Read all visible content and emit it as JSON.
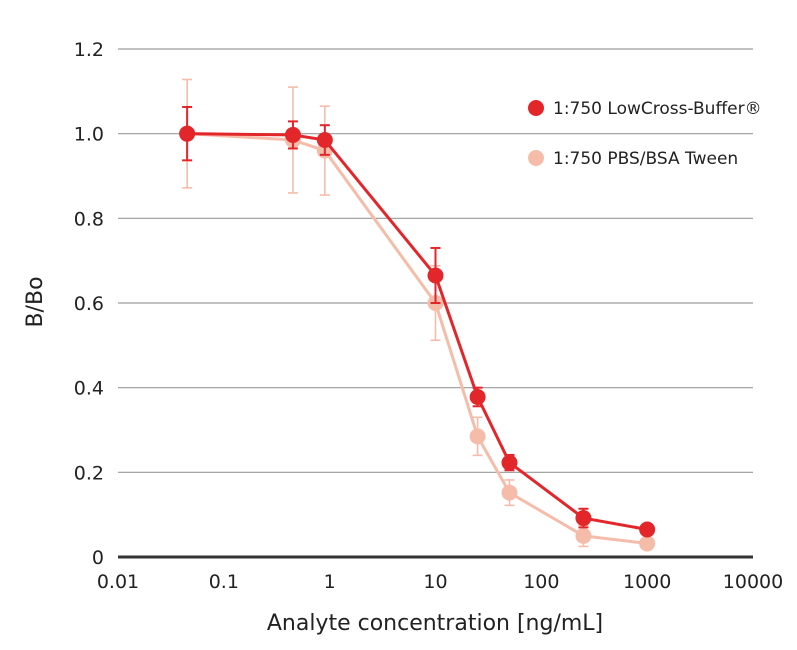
{
  "chart_data": {
    "type": "line",
    "xlabel": "Analyte concentration [ng/mL]",
    "ylabel": "B/Bo",
    "xscale": "log",
    "xlim": [
      0.01,
      10000
    ],
    "ylim": [
      0,
      1.2
    ],
    "x_ticks": [
      "0.01",
      "0.1",
      "1",
      "10",
      "100",
      "1000",
      "10000"
    ],
    "y_ticks": [
      "0",
      "0.2",
      "0.4",
      "0.6",
      "0.8",
      "1.0",
      "1.2"
    ],
    "grid": "horizontal",
    "legend_position": "top-right",
    "series": [
      {
        "name": "1:750 LowCross-Buffer®",
        "color": "#e3262a",
        "x": [
          0.045,
          0.45,
          0.9,
          10,
          25,
          50,
          250,
          1000
        ],
        "y": [
          1.0,
          0.997,
          0.985,
          0.665,
          0.378,
          0.223,
          0.092,
          0.065
        ],
        "err": [
          0.063,
          0.032,
          0.035,
          0.065,
          0.022,
          0.018,
          0.022,
          0.012
        ]
      },
      {
        "name": "1:750 PBS/BSA Tween",
        "color": "#f6bcaa",
        "x": [
          0.045,
          0.45,
          0.9,
          10,
          25,
          50,
          250,
          1000
        ],
        "y": [
          1.0,
          0.985,
          0.96,
          0.6,
          0.285,
          0.152,
          0.05,
          0.032
        ],
        "err": [
          0.128,
          0.125,
          0.105,
          0.088,
          0.045,
          0.03,
          0.025,
          0.012
        ]
      }
    ]
  }
}
